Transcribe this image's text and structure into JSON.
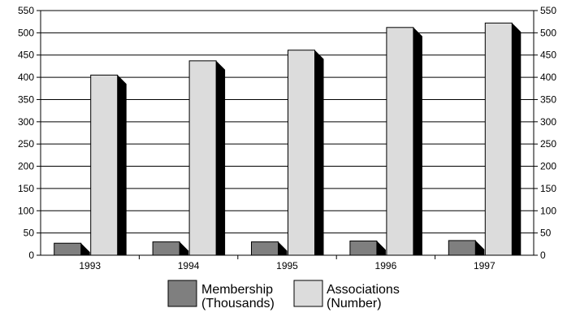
{
  "chart_data": {
    "type": "bar",
    "categories": [
      "1993",
      "1994",
      "1995",
      "1996",
      "1997"
    ],
    "series": [
      {
        "name_lines": [
          "Membership",
          "(Thousands)"
        ],
        "values": [
          27,
          30,
          30,
          32,
          33
        ],
        "color": "#7f7f7f"
      },
      {
        "name_lines": [
          "Associations",
          "(Number)"
        ],
        "values": [
          405,
          437,
          461,
          512,
          522
        ],
        "color": "#dcdcdc"
      }
    ],
    "y_ticks": [
      "0",
      "50",
      "100",
      "150",
      "200",
      "250",
      "300",
      "350",
      "400",
      "450",
      "500",
      "550"
    ],
    "ylim": [
      0,
      550
    ],
    "grid": true,
    "y_axis_labels_both_sides": true,
    "bar_style": "3d",
    "shadow_color": "#000000",
    "legend_position": "bottom"
  }
}
